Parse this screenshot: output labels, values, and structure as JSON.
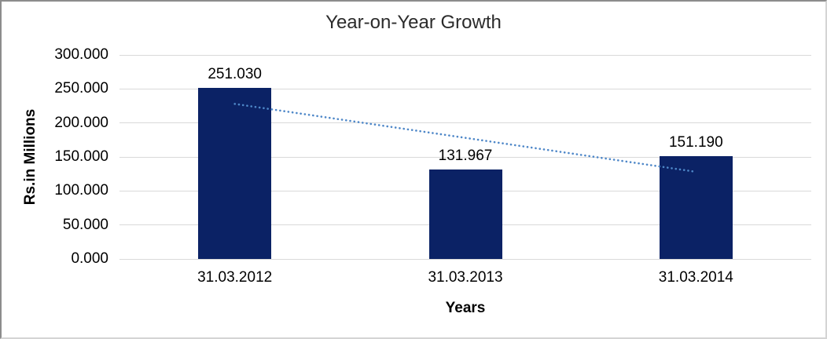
{
  "chart_data": {
    "type": "bar",
    "title": "Year-on-Year Growth",
    "categories": [
      "31.03.2012",
      "31.03.2013",
      "31.03.2014"
    ],
    "values": [
      251.03,
      131.967,
      151.19
    ],
    "data_labels": [
      "251.030",
      "131.967",
      "151.190"
    ],
    "xlabel": "Years",
    "ylabel": "Rs.in Millions",
    "ylim": [
      0,
      300
    ],
    "y_tick_step": 50,
    "y_tick_labels": [
      "0.000",
      "50.000",
      "100.000",
      "150.000",
      "200.000",
      "250.000",
      "300.000"
    ],
    "grid": true,
    "legend_position": "none",
    "bar_color": "#0b2265",
    "gridline_color": "#d9d9d9",
    "trendline": {
      "type": "linear",
      "style": "dotted",
      "color": "#4e87c8"
    }
  }
}
